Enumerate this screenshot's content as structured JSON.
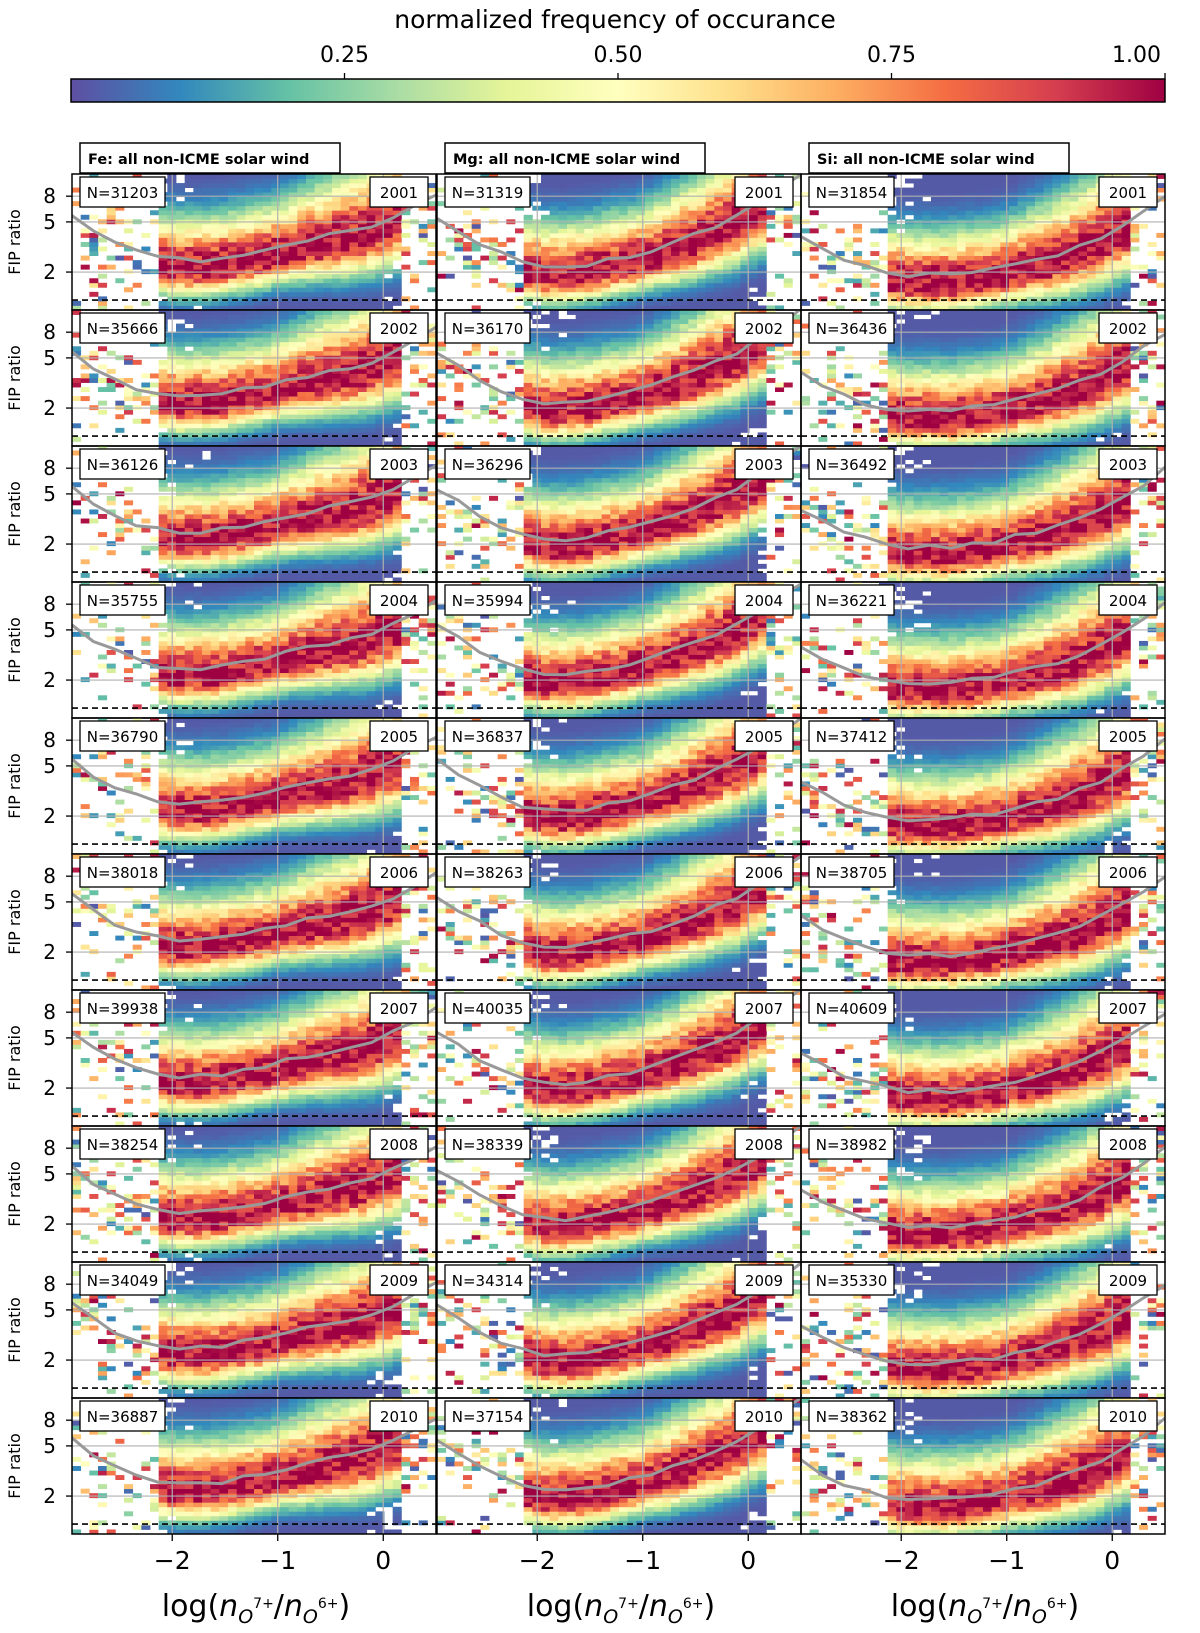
{
  "colorbar": {
    "title": "normalized frequency of occurance",
    "ticks": [
      "0.25",
      "0.50",
      "0.75",
      "1.00"
    ],
    "tick_values": [
      0.25,
      0.5,
      0.75,
      1.0
    ],
    "range": [
      0,
      1
    ],
    "colormap": "Spectral_r",
    "colors": [
      "#5e4fa2",
      "#3288bd",
      "#66c2a5",
      "#abdda4",
      "#e6f598",
      "#ffffbf",
      "#fee08b",
      "#fdae61",
      "#f46d43",
      "#d53e4f",
      "#9e0142"
    ]
  },
  "chart_data": {
    "type": "heatmap",
    "layout": {
      "rows": 10,
      "cols": 3
    },
    "columns": [
      {
        "element": "Fe",
        "title": "Fe: all non-ICME solar wind"
      },
      {
        "element": "Mg",
        "title": "Mg: all non-ICME solar wind"
      },
      {
        "element": "Si",
        "title": "Si: all non-ICME solar wind"
      }
    ],
    "years": [
      "2001",
      "2002",
      "2003",
      "2004",
      "2005",
      "2006",
      "2007",
      "2008",
      "2009",
      "2010"
    ],
    "counts": [
      [
        "N=31203",
        "N=31319",
        "N=31854"
      ],
      [
        "N=35666",
        "N=36170",
        "N=36436"
      ],
      [
        "N=36126",
        "N=36296",
        "N=36492"
      ],
      [
        "N=35755",
        "N=35994",
        "N=36221"
      ],
      [
        "N=36790",
        "N=36837",
        "N=37412"
      ],
      [
        "N=38018",
        "N=38263",
        "N=38705"
      ],
      [
        "N=39938",
        "N=40035",
        "N=40609"
      ],
      [
        "N=38254",
        "N=38339",
        "N=38982"
      ],
      [
        "N=34049",
        "N=34314",
        "N=35330"
      ],
      [
        "N=36887",
        "N=37154",
        "N=38362"
      ]
    ],
    "xlabel": "log(n_{O^{7+}}/n_{O^{6+}})",
    "xlabel_parts": {
      "pre": "log(",
      "n1": "n",
      "s1": "O",
      "p1": "7+",
      "slash": "/",
      "n2": "n",
      "s2": "O",
      "p2": "6+",
      "post": ")"
    },
    "ylabel": "FIP ratio",
    "xlim": [
      -2.95,
      0.5
    ],
    "ylim": [
      1,
      12
    ],
    "y_scale": "log",
    "xticks": [
      -2,
      -1,
      0
    ],
    "xtick_labels": [
      "−2",
      "−1",
      "0"
    ],
    "yticks": [
      2,
      5,
      8
    ],
    "ytick_labels": [
      "2",
      "5",
      "8"
    ],
    "reference_line_y": 1.2,
    "grid": true,
    "median_line_color": "#999999",
    "median_curves": {
      "Fe": [
        5.6,
        4.2,
        3.4,
        2.9,
        2.6,
        2.5,
        2.5,
        2.6,
        2.8,
        3.0,
        3.3,
        3.6,
        3.9,
        4.2,
        4.7,
        5.5,
        6.8,
        8.5
      ],
      "Mg": [
        5.5,
        4.3,
        3.4,
        2.8,
        2.4,
        2.2,
        2.2,
        2.3,
        2.5,
        2.7,
        3.0,
        3.4,
        3.9,
        4.6,
        5.5,
        7.0,
        9.0,
        12.0
      ],
      "Si": [
        3.8,
        3.0,
        2.5,
        2.2,
        2.0,
        1.9,
        1.9,
        1.9,
        2.0,
        2.1,
        2.3,
        2.5,
        2.8,
        3.2,
        3.8,
        4.7,
        6.0,
        8.0
      ]
    }
  }
}
